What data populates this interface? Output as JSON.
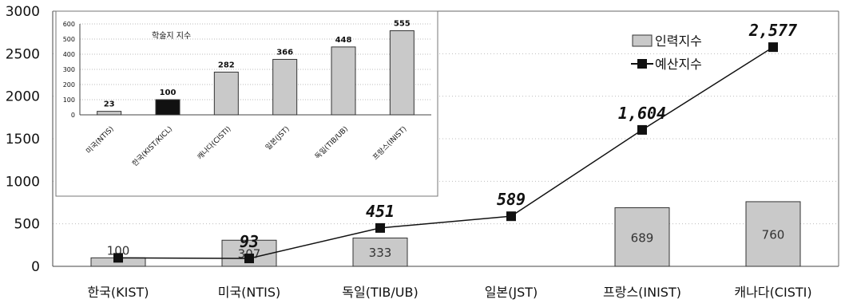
{
  "chart_data": [
    {
      "type": "bar+line",
      "categories": [
        "한국(KIST)",
        "미국(NTIS)",
        "독일(TIB/UB)",
        "일본(JST)",
        "프랑스(INIST)",
        "캐나다(CISTI)"
      ],
      "series": [
        {
          "name": "인력지수",
          "kind": "bar",
          "values": [
            100,
            307,
            333,
            null,
            689,
            760
          ],
          "labels": [
            "100",
            "307",
            "333",
            "",
            "689",
            "760"
          ]
        },
        {
          "name": "예산지수",
          "kind": "line",
          "values": [
            100,
            93,
            451,
            589,
            1604,
            2577
          ],
          "labels": [
            "",
            "93",
            "451",
            "589",
            "1,604",
            "2,577"
          ]
        }
      ],
      "yticks": [
        0,
        500,
        1000,
        1500,
        2000,
        2500,
        3000
      ],
      "ylim": [
        0,
        3000
      ],
      "legend": "top-right",
      "grid": true,
      "colors": {
        "bar_fill": "#c9c9c9",
        "bar_stroke": "#333333",
        "line": "#111111",
        "marker": "#111111"
      }
    },
    {
      "type": "bar",
      "title": "학술지 지수",
      "categories": [
        "미국(NTIS)",
        "한국(KIST/KICL)",
        "캐나다(CISTI)",
        "일본(JST)",
        "독일(TIB/UB)",
        "프랑스(INIST)"
      ],
      "values": [
        23,
        100,
        282,
        366,
        448,
        555
      ],
      "yticks": [
        0,
        100,
        200,
        300,
        400,
        500,
        600
      ],
      "ylim": [
        0,
        600
      ],
      "highlight_index": 1,
      "grid": true,
      "colors": {
        "bar_fill": "#c9c9c9",
        "highlight_fill": "#111111",
        "bar_stroke": "#333333"
      }
    }
  ]
}
